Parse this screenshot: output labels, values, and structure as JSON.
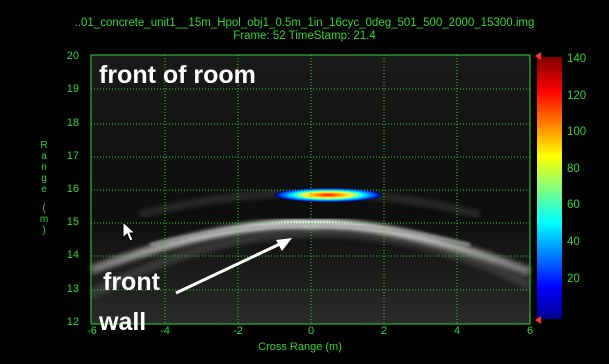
{
  "header": {
    "filename": "..01_concrete_unit1__15m_Hpol_obj1_0.5m_1in_16cyc_0deg_501_500_2000_15300.img",
    "frame_info": "Frame: 52  TimeStamp: 21.4"
  },
  "plot": {
    "y_axis_title": [
      "R",
      "a",
      "n",
      "g",
      "e",
      "",
      "(",
      "m",
      ")"
    ],
    "x_axis_title": "Cross Range (m)",
    "y_ticks": [
      "20",
      "19",
      "18",
      "17",
      "16",
      "15",
      "14",
      "13",
      "12"
    ],
    "x_ticks": [
      "-6",
      "-4",
      "-2",
      "0",
      "2",
      "4",
      "6"
    ],
    "colors": {
      "axis_text": "#31d631",
      "grid": "#2fd22f",
      "background": "#000000"
    }
  },
  "colorbar": {
    "ticks": [
      "140",
      "120",
      "100",
      "80",
      "60",
      "40",
      "20"
    ]
  },
  "annotations": {
    "top": "front of room",
    "bottom_line1": "front",
    "bottom_line2": "wall"
  },
  "icons": {
    "cursor": "mouse-pointer-icon"
  }
}
